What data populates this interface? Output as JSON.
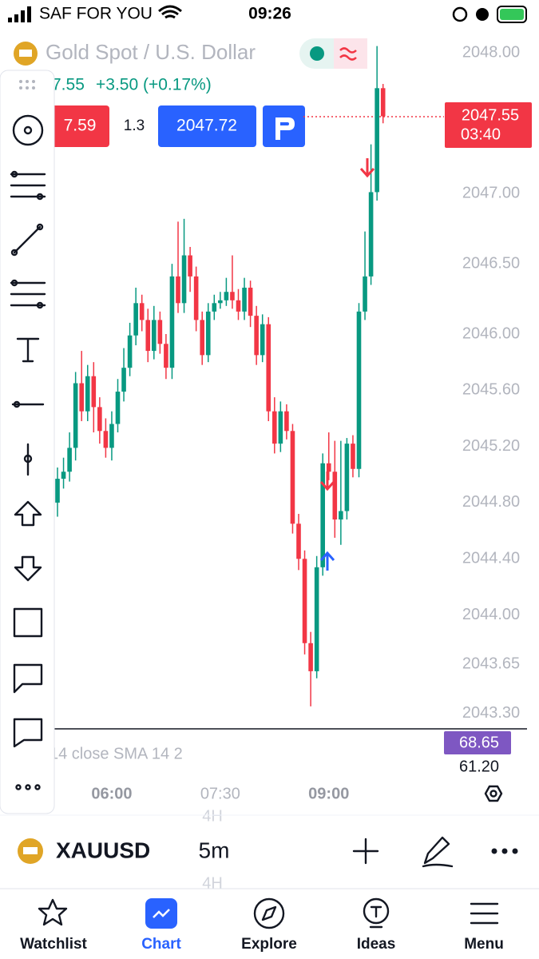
{
  "status_bar": {
    "carrier": "SAF FOR YOU",
    "time": "09:26"
  },
  "header": {
    "title": "Gold Spot / U.S. Dollar",
    "price": "7.55",
    "change": "+3.50 (+0.17%)",
    "sell": "7.59",
    "spread": "1.3",
    "buy": "2047.72"
  },
  "chart_data": {
    "type": "candlestick",
    "up_color": "#089981",
    "down_color": "#f23645",
    "open": [
      2044.8,
      2044.97,
      2045.02,
      2045.19,
      2045.65,
      2045.45,
      2045.7,
      2045.48,
      2045.31,
      2045.19,
      2045.36,
      2045.59,
      2045.76,
      2045.99,
      2046.22,
      2046.1,
      2045.88,
      2046.1,
      2045.93,
      2045.76,
      2046.41,
      2046.22,
      2046.56,
      2046.41,
      2046.1,
      2045.85,
      2046.16,
      2046.22,
      2046.24,
      2046.3,
      2046.24,
      2046.16,
      2046.33,
      2046.13,
      2045.85,
      2046.07,
      2045.45,
      2045.22,
      2045.45,
      2045.31,
      2044.65,
      2044.4,
      2043.8,
      2043.6,
      2044.34,
      2045.08,
      2045.02,
      2044.68,
      2044.74,
      2045.22,
      2045.04,
      2046.16,
      2046.41,
      2047.01,
      2047.75
    ],
    "high": [
      2045.05,
      2045.12,
      2045.3,
      2045.73,
      2045.88,
      2045.78,
      2045.8,
      2045.55,
      2045.4,
      2045.45,
      2045.68,
      2045.9,
      2046.08,
      2046.33,
      2046.28,
      2046.18,
      2046.2,
      2046.16,
      2046.0,
      2046.5,
      2046.8,
      2046.82,
      2046.62,
      2046.48,
      2046.16,
      2046.22,
      2046.28,
      2046.3,
      2046.4,
      2046.56,
      2046.32,
      2046.4,
      2046.38,
      2046.2,
      2046.14,
      2046.12,
      2045.55,
      2045.52,
      2045.5,
      2045.36,
      2044.72,
      2044.46,
      2043.88,
      2044.42,
      2045.15,
      2045.3,
      2045.24,
      2045.24,
      2045.26,
      2045.28,
      2046.22,
      2046.73,
      2047.35,
      2048.05,
      2047.78
    ],
    "low": [
      2044.7,
      2044.9,
      2044.95,
      2045.1,
      2045.38,
      2045.38,
      2045.3,
      2045.22,
      2045.12,
      2045.1,
      2045.3,
      2045.52,
      2045.7,
      2045.92,
      2046.02,
      2045.8,
      2045.82,
      2045.86,
      2045.68,
      2045.68,
      2046.15,
      2046.15,
      2046.3,
      2046.02,
      2045.78,
      2045.8,
      2046.1,
      2046.18,
      2046.2,
      2046.18,
      2046.1,
      2046.1,
      2046.05,
      2045.78,
      2045.8,
      2045.38,
      2045.15,
      2045.16,
      2045.25,
      2044.58,
      2044.32,
      2043.72,
      2043.35,
      2043.55,
      2044.28,
      2044.96,
      2044.55,
      2044.5,
      2044.68,
      2044.98,
      2044.98,
      2046.1,
      2046.35,
      2046.95,
      2047.5
    ],
    "close": [
      2044.97,
      2045.02,
      2045.19,
      2045.65,
      2045.45,
      2045.7,
      2045.48,
      2045.31,
      2045.19,
      2045.36,
      2045.59,
      2045.76,
      2045.99,
      2046.22,
      2046.1,
      2045.88,
      2046.1,
      2045.93,
      2045.76,
      2046.41,
      2046.22,
      2046.56,
      2046.41,
      2046.1,
      2045.85,
      2046.16,
      2046.22,
      2046.24,
      2046.3,
      2046.24,
      2046.16,
      2046.33,
      2046.13,
      2045.85,
      2046.07,
      2045.45,
      2045.22,
      2045.45,
      2045.31,
      2044.65,
      2044.4,
      2043.8,
      2043.6,
      2044.34,
      2045.08,
      2045.02,
      2044.68,
      2044.74,
      2045.22,
      2045.04,
      2046.16,
      2046.41,
      2047.01,
      2047.75,
      2047.55
    ],
    "countdown": "03:40",
    "ylim": [
      2043.19,
      2048.15
    ],
    "yticks": [
      {
        "value": 2048,
        "label": "2048.00"
      },
      {
        "value": 2047,
        "label": "2047.00"
      },
      {
        "value": 2046.5,
        "label": "2046.50"
      },
      {
        "value": 2046,
        "label": "2046.00"
      },
      {
        "value": 2045.6,
        "label": "2045.60"
      },
      {
        "value": 2045.2,
        "label": "2045.20"
      },
      {
        "value": 2044.8,
        "label": "2044.80"
      },
      {
        "value": 2044.4,
        "label": "2044.40"
      },
      {
        "value": 2044,
        "label": "2044.00"
      },
      {
        "value": 2043.65,
        "label": "2043.65"
      },
      {
        "value": 2043.3,
        "label": "2043.30"
      }
    ],
    "xticks": [
      {
        "value": 9,
        "label": "06:00"
      },
      {
        "value": 27,
        "label": "07:30"
      },
      {
        "value": 45,
        "label": "09:00"
      }
    ]
  },
  "indicator": {
    "legend": "14 close SMA 14 2",
    "rsi": "68.65",
    "sma": "61.20"
  },
  "bottom_bar": {
    "symbol": "XAUUSD",
    "interval": "5m",
    "ghost_above": "4H",
    "ghost_below": "4H"
  },
  "tab_bar": {
    "tabs": [
      "Watchlist",
      "Chart",
      "Explore",
      "Ideas",
      "Menu"
    ],
    "active": 1
  }
}
